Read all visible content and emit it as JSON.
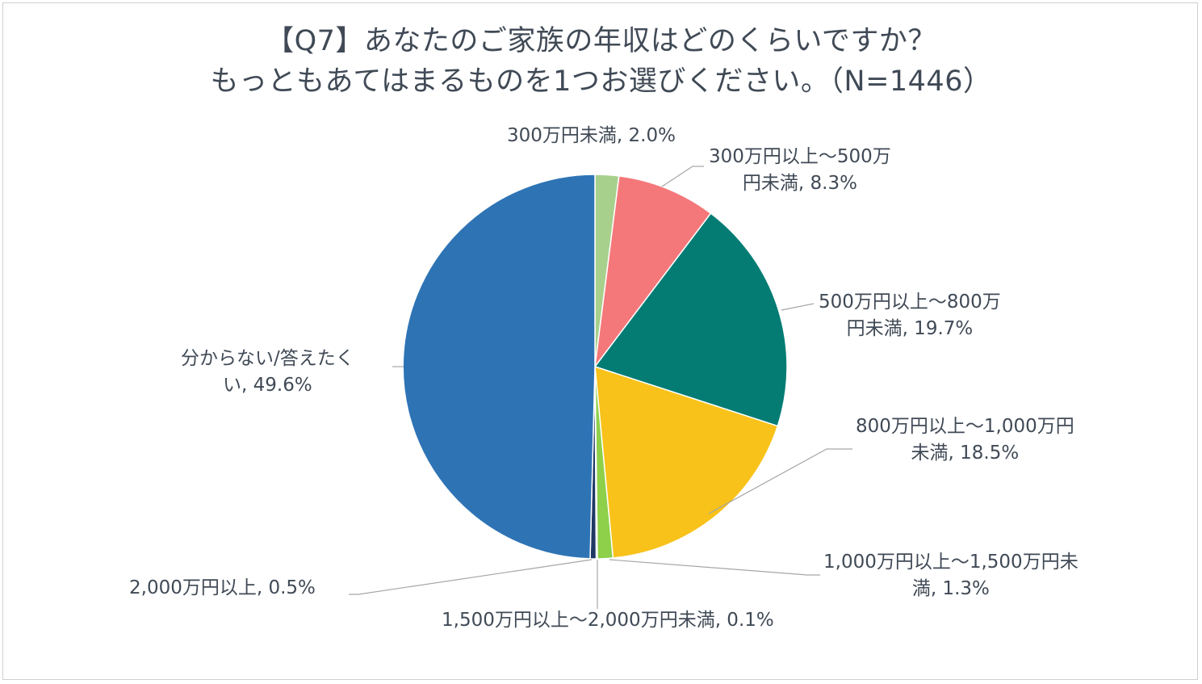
{
  "chart_data": {
    "type": "pie",
    "title_lines": [
      "【Q7】あなたのご家族の年収はどのくらいですか？",
      "もっともあてはまるものを1つお選びください。（N=1446）"
    ],
    "unit": "%",
    "slices": [
      {
        "name": "300万円未満",
        "value": 2.0,
        "label_lines": [
          "300万円未満, 2.0%"
        ],
        "color": "#a8d08d"
      },
      {
        "name": "300万円以上～500万円未満",
        "value": 8.3,
        "label_lines": [
          "300万円以上～500万",
          "円未満, 8.3%"
        ],
        "color": "#f4787a"
      },
      {
        "name": "500万円以上～800万円未満",
        "value": 19.7,
        "label_lines": [
          "500万円以上～800万",
          "円未満, 19.7%"
        ],
        "color": "#047c74"
      },
      {
        "name": "800万円以上～1,000万円未満",
        "value": 18.5,
        "label_lines": [
          "800万円以上～1,000万円",
          "未満, 18.5%"
        ],
        "color": "#f8c21a"
      },
      {
        "name": "1,000万円以上～1,500万円未満",
        "value": 1.3,
        "label_lines": [
          "1,000万円以上～1,500万円未",
          "満, 1.3%"
        ],
        "color": "#8ed04a"
      },
      {
        "name": "1,500万円以上～2,000万円未満",
        "value": 0.1,
        "label_lines": [
          "1,500万円以上～2,000万円未満, 0.1%"
        ],
        "color": "#3a5fa8"
      },
      {
        "name": "2,000万円以上",
        "value": 0.5,
        "label_lines": [
          "2,000万円以上, 0.5%"
        ],
        "color": "#1f3864"
      },
      {
        "name": "分からない/答えたくない",
        "value": 49.6,
        "label_lines": [
          "分からない/答えたく",
          "い, 49.6%"
        ],
        "color": "#2e74b5"
      }
    ]
  }
}
